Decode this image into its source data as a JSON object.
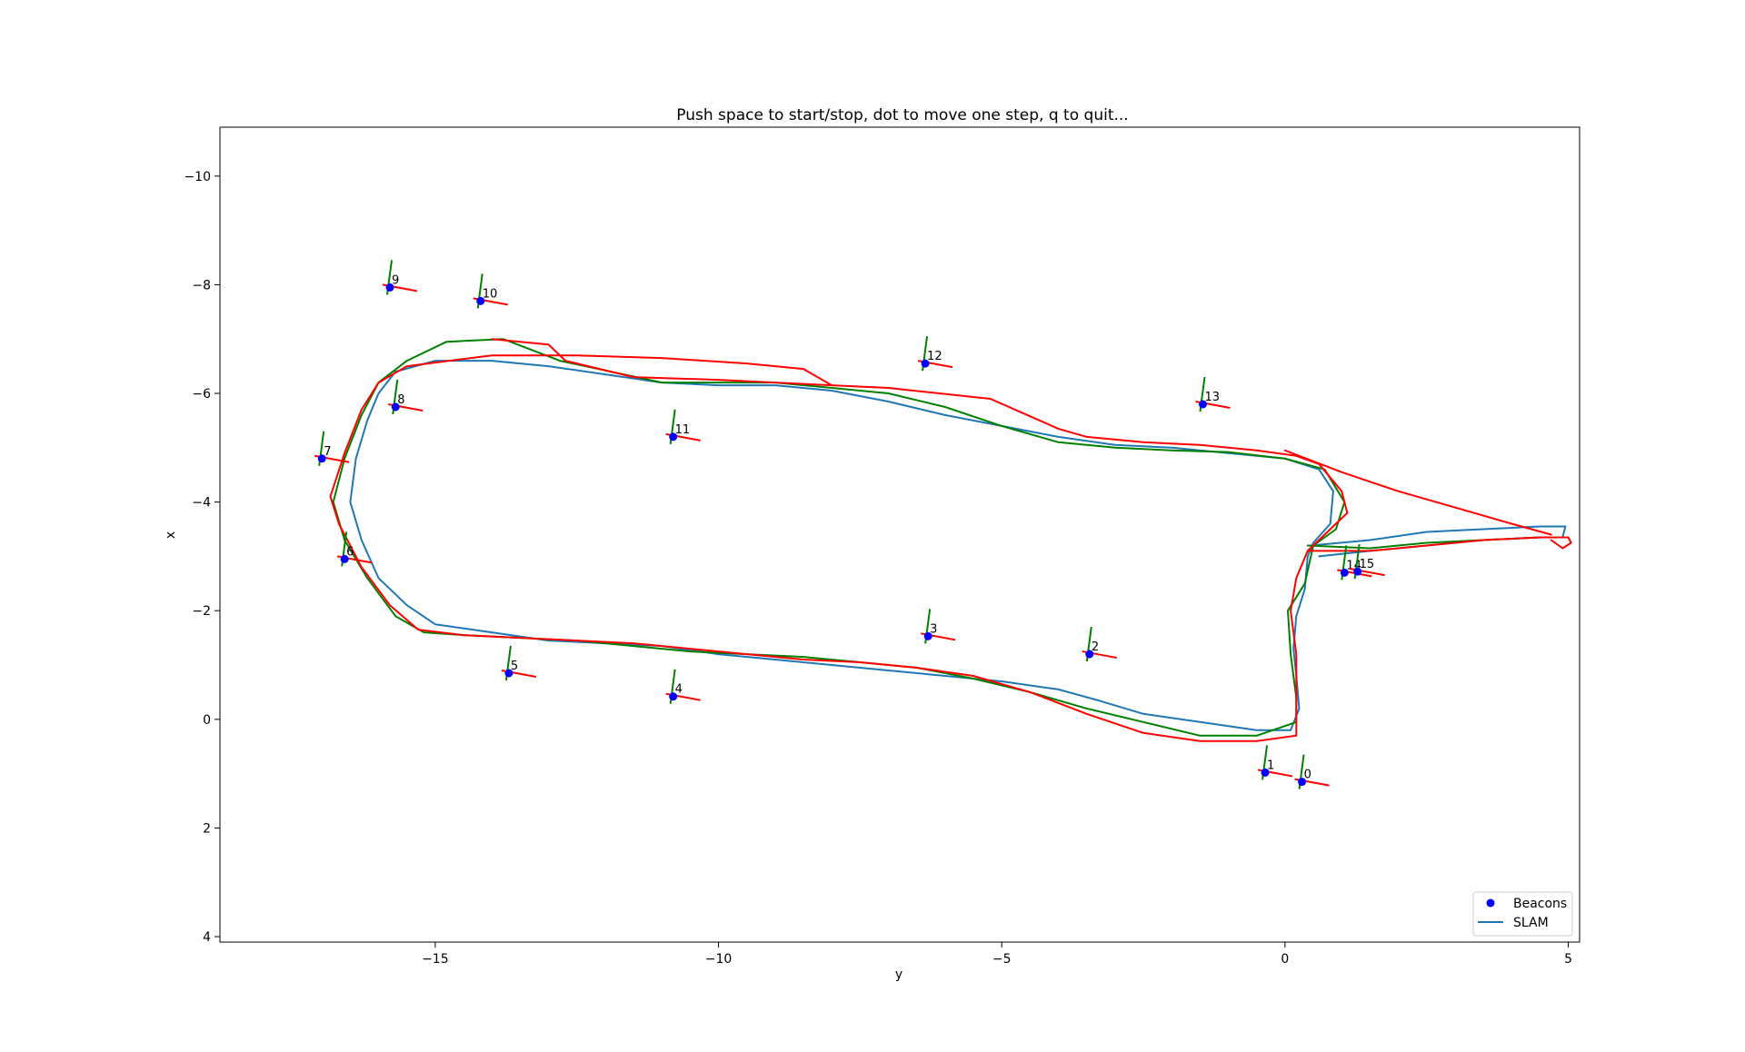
{
  "chart_data": {
    "type": "scatter",
    "title": "Push space to start/stop, dot to move one step, q to quit...",
    "xlabel": "y",
    "ylabel": "x",
    "xlim": [
      -18.8,
      5.2
    ],
    "ylim": [
      4.1,
      -10.9
    ],
    "y_inverted": true,
    "grid": false,
    "legend_position": "lower-right",
    "x_ticks": [
      -15,
      -10,
      -5,
      0,
      5
    ],
    "x_tick_labels": [
      "−15",
      "−10",
      "−5",
      "0",
      "5"
    ],
    "y_ticks": [
      -10,
      -8,
      -6,
      -4,
      -2,
      0,
      2,
      4
    ],
    "y_tick_labels": [
      "−10",
      "−8",
      "−6",
      "−4",
      "−2",
      "0",
      "2",
      "4"
    ],
    "legend": [
      {
        "label": "Beacons",
        "marker": "dot",
        "color": "#0000ff"
      },
      {
        "label": "SLAM",
        "marker": "line",
        "color": "#1f77b4"
      }
    ],
    "beacons": {
      "name": "Beacons",
      "color": "#0000ff",
      "points": [
        {
          "id": "0",
          "y": 0.3,
          "x": 1.15
        },
        {
          "id": "1",
          "y": -0.35,
          "x": 0.98
        },
        {
          "id": "2",
          "y": -3.45,
          "x": -1.2
        },
        {
          "id": "3",
          "y": -6.3,
          "x": -1.53
        },
        {
          "id": "4",
          "y": -10.8,
          "x": -0.42
        },
        {
          "id": "5",
          "y": -13.7,
          "x": -0.85
        },
        {
          "id": "6",
          "y": -16.6,
          "x": -2.95
        },
        {
          "id": "7",
          "y": -17.0,
          "x": -4.8
        },
        {
          "id": "8",
          "y": -15.7,
          "x": -5.75
        },
        {
          "id": "9",
          "y": -15.8,
          "x": -7.95
        },
        {
          "id": "10",
          "y": -14.2,
          "x": -7.7
        },
        {
          "id": "11",
          "y": -10.8,
          "x": -5.2
        },
        {
          "id": "12",
          "y": -6.35,
          "x": -6.55
        },
        {
          "id": "13",
          "y": -1.45,
          "x": -5.8
        },
        {
          "id": "14",
          "y": 1.05,
          "x": -2.7
        },
        {
          "id": "15",
          "y": 1.28,
          "x": -2.72
        }
      ]
    },
    "trajectories": [
      {
        "name": "SLAM",
        "color": "#1f77b4",
        "points": [
          [
            0.25,
            -0.2
          ],
          [
            0.1,
            0.2
          ],
          [
            -0.5,
            0.2
          ],
          [
            -1.5,
            0.05
          ],
          [
            -2.5,
            -0.1
          ],
          [
            -3.3,
            -0.35
          ],
          [
            -4.0,
            -0.55
          ],
          [
            -5.0,
            -0.7
          ],
          [
            -6.0,
            -0.8
          ],
          [
            -7.0,
            -0.9
          ],
          [
            -8.0,
            -1.0
          ],
          [
            -9.0,
            -1.1
          ],
          [
            -10.0,
            -1.2
          ],
          [
            -11.0,
            -1.35
          ],
          [
            -12.0,
            -1.4
          ],
          [
            -13.0,
            -1.45
          ],
          [
            -14.0,
            -1.6
          ],
          [
            -15.0,
            -1.75
          ],
          [
            -15.5,
            -2.1
          ],
          [
            -16.0,
            -2.6
          ],
          [
            -16.3,
            -3.3
          ],
          [
            -16.5,
            -4.0
          ],
          [
            -16.4,
            -4.8
          ],
          [
            -16.2,
            -5.5
          ],
          [
            -16.0,
            -6.0
          ],
          [
            -15.7,
            -6.4
          ],
          [
            -15.0,
            -6.6
          ],
          [
            -14.0,
            -6.6
          ],
          [
            -13.0,
            -6.5
          ],
          [
            -12.0,
            -6.35
          ],
          [
            -11.0,
            -6.2
          ],
          [
            -10.0,
            -6.15
          ],
          [
            -9.0,
            -6.15
          ],
          [
            -8.0,
            -6.05
          ],
          [
            -7.0,
            -5.85
          ],
          [
            -6.0,
            -5.6
          ],
          [
            -5.0,
            -5.4
          ],
          [
            -4.0,
            -5.2
          ],
          [
            -3.0,
            -5.05
          ],
          [
            -2.0,
            -5.0
          ],
          [
            -1.0,
            -4.9
          ],
          [
            0.0,
            -4.8
          ],
          [
            0.6,
            -4.6
          ],
          [
            0.85,
            -4.2
          ],
          [
            0.8,
            -3.6
          ],
          [
            0.5,
            -3.25
          ],
          [
            0.4,
            -3.0
          ],
          [
            0.35,
            -2.4
          ],
          [
            0.2,
            -1.9
          ],
          [
            0.15,
            -1.3
          ],
          [
            0.2,
            -0.8
          ],
          [
            0.25,
            -0.2
          ]
        ]
      },
      {
        "name": "",
        "color": "#1f77b4",
        "points": [
          [
            0.45,
            -3.2
          ],
          [
            1.5,
            -3.3
          ],
          [
            2.5,
            -3.45
          ],
          [
            3.5,
            -3.5
          ],
          [
            4.5,
            -3.55
          ],
          [
            4.95,
            -3.55
          ],
          [
            4.9,
            -3.35
          ],
          [
            4.5,
            -3.35
          ],
          [
            3.5,
            -3.3
          ],
          [
            2.5,
            -3.2
          ],
          [
            1.5,
            -3.1
          ],
          [
            0.6,
            -3.0
          ]
        ]
      },
      {
        "name": "",
        "color": "#008000",
        "points": [
          [
            0.2,
            0.05
          ],
          [
            -0.5,
            0.3
          ],
          [
            -1.5,
            0.3
          ],
          [
            -2.5,
            0.05
          ],
          [
            -3.5,
            -0.2
          ],
          [
            -4.5,
            -0.5
          ],
          [
            -5.5,
            -0.75
          ],
          [
            -6.5,
            -0.95
          ],
          [
            -7.5,
            -1.05
          ],
          [
            -8.5,
            -1.15
          ],
          [
            -9.5,
            -1.2
          ],
          [
            -10.5,
            -1.25
          ],
          [
            -11.5,
            -1.35
          ],
          [
            -12.5,
            -1.45
          ],
          [
            -13.5,
            -1.5
          ],
          [
            -14.5,
            -1.55
          ],
          [
            -15.2,
            -1.6
          ],
          [
            -15.7,
            -1.9
          ],
          [
            -16.2,
            -2.6
          ],
          [
            -16.6,
            -3.3
          ],
          [
            -16.8,
            -4.0
          ],
          [
            -16.6,
            -4.8
          ],
          [
            -16.3,
            -5.6
          ],
          [
            -16.0,
            -6.2
          ],
          [
            -15.5,
            -6.6
          ],
          [
            -14.8,
            -6.95
          ],
          [
            -13.8,
            -7.0
          ],
          [
            -12.8,
            -6.6
          ],
          [
            -11.0,
            -6.2
          ],
          [
            -9.0,
            -6.2
          ],
          [
            -8.0,
            -6.1
          ],
          [
            -7.0,
            -6.0
          ],
          [
            -6.0,
            -5.75
          ],
          [
            -5.0,
            -5.4
          ],
          [
            -4.0,
            -5.1
          ],
          [
            -3.0,
            -5.0
          ],
          [
            -2.0,
            -4.95
          ],
          [
            -1.0,
            -4.92
          ],
          [
            0.0,
            -4.8
          ],
          [
            0.7,
            -4.6
          ],
          [
            1.05,
            -4.0
          ],
          [
            0.9,
            -3.5
          ],
          [
            0.5,
            -3.2
          ],
          [
            0.35,
            -2.5
          ],
          [
            0.05,
            -2.0
          ],
          [
            0.1,
            -1.2
          ],
          [
            0.2,
            -0.4
          ],
          [
            0.2,
            0.05
          ]
        ]
      },
      {
        "name": "",
        "color": "#008000",
        "points": [
          [
            0.4,
            -3.2
          ],
          [
            1.5,
            -3.15
          ],
          [
            2.5,
            -3.25
          ],
          [
            3.5,
            -3.3
          ],
          [
            4.5,
            -3.35
          ]
        ]
      },
      {
        "name": "",
        "color": "#ff0000",
        "points": [
          [
            0.2,
            0.3
          ],
          [
            -0.5,
            0.4
          ],
          [
            -1.5,
            0.4
          ],
          [
            -2.5,
            0.25
          ],
          [
            -3.5,
            -0.1
          ],
          [
            -4.5,
            -0.5
          ],
          [
            -5.5,
            -0.8
          ],
          [
            -6.5,
            -0.95
          ],
          [
            -7.5,
            -1.05
          ],
          [
            -8.5,
            -1.1
          ],
          [
            -9.5,
            -1.2
          ],
          [
            -10.5,
            -1.3
          ],
          [
            -11.5,
            -1.4
          ],
          [
            -12.5,
            -1.45
          ],
          [
            -13.5,
            -1.5
          ],
          [
            -14.5,
            -1.55
          ],
          [
            -15.3,
            -1.65
          ],
          [
            -15.8,
            -2.1
          ],
          [
            -16.3,
            -2.8
          ],
          [
            -16.7,
            -3.6
          ],
          [
            -16.85,
            -4.1
          ],
          [
            -16.6,
            -4.9
          ],
          [
            -16.3,
            -5.7
          ],
          [
            -16.0,
            -6.2
          ],
          [
            -15.5,
            -6.5
          ],
          [
            -14.0,
            -6.7
          ],
          [
            -12.5,
            -6.7
          ],
          [
            -11.0,
            -6.65
          ],
          [
            -9.5,
            -6.55
          ],
          [
            -8.5,
            -6.45
          ],
          [
            -8.0,
            -6.15
          ],
          [
            -7.0,
            -6.1
          ],
          [
            -5.2,
            -5.9
          ],
          [
            -4.0,
            -5.35
          ],
          [
            -3.5,
            -5.2
          ],
          [
            -2.5,
            -5.1
          ],
          [
            -1.5,
            -5.05
          ],
          [
            -0.5,
            -4.95
          ],
          [
            0.2,
            -4.85
          ],
          [
            0.6,
            -4.7
          ],
          [
            1.0,
            -4.2
          ],
          [
            1.1,
            -3.8
          ],
          [
            0.8,
            -3.5
          ],
          [
            0.4,
            -3.1
          ],
          [
            0.2,
            -2.6
          ],
          [
            0.1,
            -2.0
          ],
          [
            0.2,
            -1.2
          ],
          [
            0.2,
            -0.6
          ],
          [
            0.2,
            0.3
          ]
        ]
      },
      {
        "name": "",
        "color": "#ff0000",
        "points": [
          [
            0.4,
            -3.1
          ],
          [
            1.5,
            -3.1
          ],
          [
            2.5,
            -3.2
          ],
          [
            3.5,
            -3.3
          ],
          [
            4.5,
            -3.35
          ],
          [
            5.0,
            -3.35
          ],
          [
            5.05,
            -3.25
          ],
          [
            4.9,
            -3.15
          ],
          [
            4.7,
            -3.3
          ]
        ]
      },
      {
        "name": "",
        "color": "#ff0000",
        "points": [
          [
            0.0,
            -4.95
          ],
          [
            1.0,
            -4.55
          ],
          [
            2.0,
            -4.2
          ],
          [
            3.0,
            -3.9
          ],
          [
            4.0,
            -3.6
          ],
          [
            4.7,
            -3.4
          ]
        ]
      },
      {
        "name": "",
        "color": "#ff0000",
        "points": [
          [
            -14.0,
            -7.0
          ],
          [
            -13.0,
            -6.9
          ],
          [
            -12.7,
            -6.6
          ],
          [
            -11.5,
            -6.3
          ],
          [
            -10.0,
            -6.25
          ],
          [
            -9.0,
            -6.2
          ],
          [
            -8.0,
            -6.15
          ]
        ]
      }
    ]
  }
}
